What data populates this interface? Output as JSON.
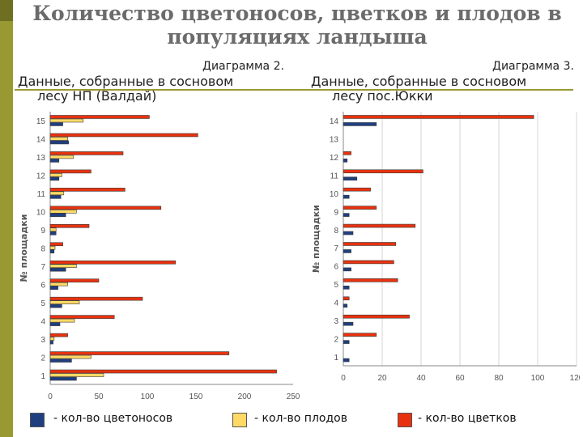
{
  "title": "Количество цветоносов, цветков и плодов в популяциях ландыша",
  "colors": {
    "accent": "#999933",
    "peduncles": "#1f3f7f",
    "fruits": "#ffd966",
    "flowers": "#e8320f"
  },
  "diagrams": [
    {
      "label": "Диаграмма 2.",
      "desc_line1": "Данные, собранные в сосновом",
      "desc_line2": "лесу НП (Валдай)"
    },
    {
      "label": "Диаграмма 3.",
      "desc_line1": "Данные, собранные в сосновом",
      "desc_line2": "лесу пос.Юкки"
    }
  ],
  "legend": {
    "peduncles": "- кол-во цветоносов",
    "fruits": "- кол-во плодов",
    "flowers": "- кол-во цветков"
  },
  "chart_data": [
    {
      "type": "bar",
      "orientation": "horizontal",
      "ylabel": "№ площадки",
      "categories": [
        "1",
        "2",
        "3",
        "4",
        "5",
        "6",
        "7",
        "8",
        "9",
        "10",
        "11",
        "12",
        "13",
        "14",
        "15"
      ],
      "xlim": [
        0,
        250
      ],
      "xticks": [
        "0",
        "50",
        "100",
        "150",
        "200",
        "250"
      ],
      "grid": false,
      "series": [
        {
          "key": "peduncles",
          "values": [
            27,
            22,
            3,
            10,
            12,
            8,
            16,
            4,
            6,
            16,
            11,
            9,
            9,
            19,
            13
          ]
        },
        {
          "key": "fruits",
          "values": [
            55,
            42,
            4,
            25,
            30,
            18,
            27,
            5,
            6,
            27,
            14,
            12,
            24,
            18,
            34
          ]
        },
        {
          "key": "flowers",
          "values": [
            233,
            184,
            18,
            66,
            95,
            50,
            129,
            13,
            40,
            114,
            77,
            42,
            75,
            152,
            102
          ]
        }
      ]
    },
    {
      "type": "bar",
      "orientation": "horizontal",
      "ylabel": "№ площадки",
      "categories": [
        "1",
        "2",
        "3",
        "4",
        "5",
        "6",
        "7",
        "8",
        "9",
        "10",
        "11",
        "12",
        "13",
        "14"
      ],
      "xlim": [
        0,
        120
      ],
      "xticks": [
        "0",
        "20",
        "40",
        "60",
        "80",
        "100",
        "120"
      ],
      "grid": true,
      "series": [
        {
          "key": "peduncles",
          "values": [
            3,
            3,
            5,
            2,
            3,
            4,
            4,
            5,
            3,
            3,
            7,
            2,
            0,
            17
          ]
        },
        {
          "key": "fruits",
          "values": [
            0,
            0,
            0,
            0,
            0,
            0,
            0,
            0,
            0,
            0,
            0,
            0,
            0,
            0
          ]
        },
        {
          "key": "flowers",
          "values": [
            0,
            17,
            34,
            3,
            28,
            26,
            27,
            37,
            17,
            14,
            41,
            4,
            0,
            98
          ]
        }
      ]
    }
  ]
}
